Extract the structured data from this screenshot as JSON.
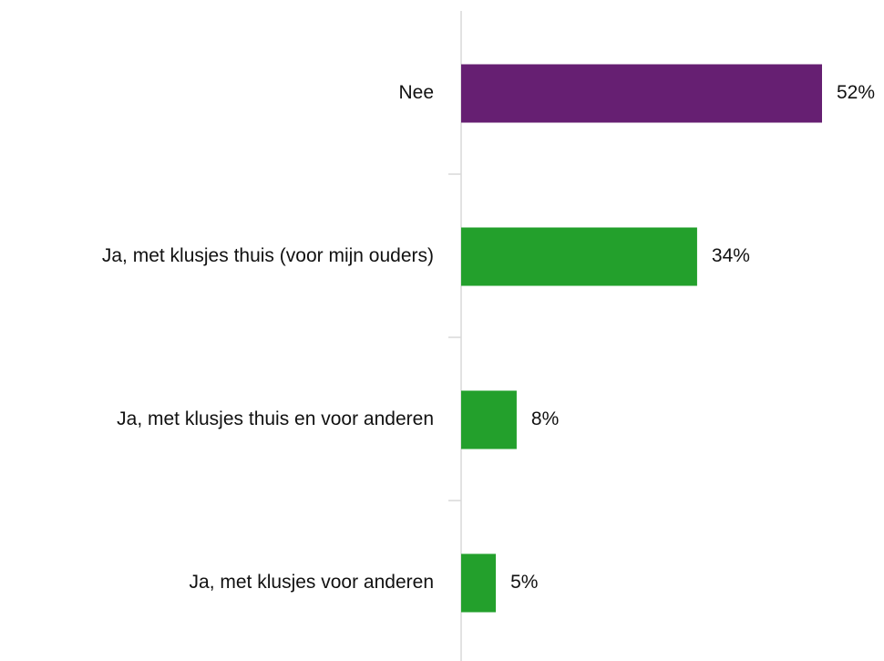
{
  "chart_data": {
    "type": "bar",
    "orientation": "horizontal",
    "categories": [
      "Nee",
      "Ja, met klusjes thuis (voor mijn ouders)",
      "Ja, met klusjes thuis en voor anderen",
      "Ja, met klusjes voor anderen"
    ],
    "values": [
      52,
      34,
      8,
      5
    ],
    "value_labels": [
      "52%",
      "34%",
      "8%",
      "5%"
    ],
    "colors": [
      "#661f72",
      "#23a02c",
      "#23a02c",
      "#23a02c"
    ],
    "xlim": [
      0,
      52
    ],
    "grid": false,
    "legend": "none"
  }
}
